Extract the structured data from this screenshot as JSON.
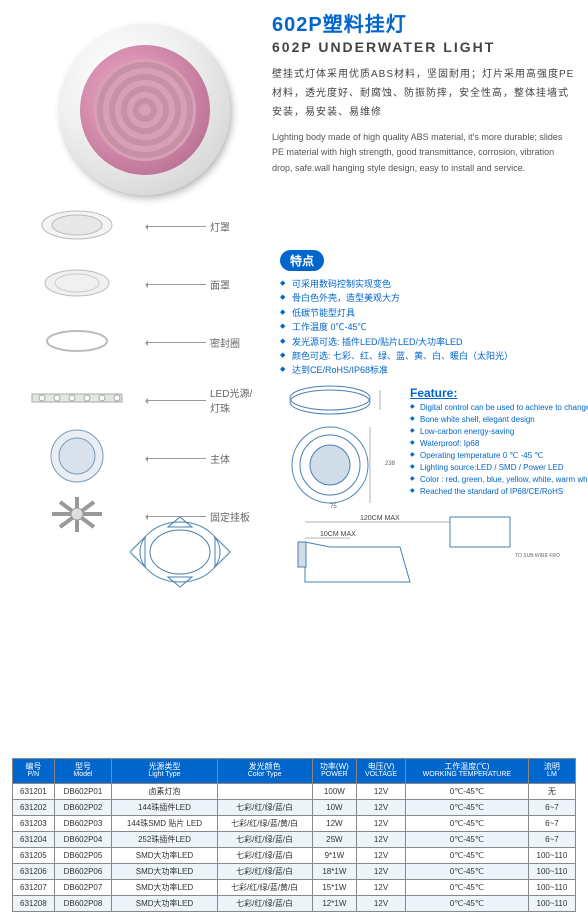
{
  "title_cn": "602P塑料挂灯",
  "title_en": "602P  UNDERWATER LIGHT",
  "desc_cn": "壁挂式灯体采用优质ABS材料，坚固耐用；灯片采用高强度PE材料，透光度好、耐腐蚀、防振防摔，安全性高，整体挂墙式安装，易安装、易维修",
  "desc_en": "Lighting body  made of high quality ABS material, it's more durable;  slides PE material with high strength, good transmittance, corrosion, vibration drop, safe.wall hanging style design, easy to install and service.",
  "parts": [
    {
      "label": "灯罩"
    },
    {
      "label": "面罩"
    },
    {
      "label": "密封圈"
    },
    {
      "label": "LED光源/灯珠"
    },
    {
      "label": "主体"
    },
    {
      "label": "固定挂板"
    }
  ],
  "features_badge": "特点",
  "features_cn": [
    "可采用数码控制实现变色",
    "骨白色外壳，造型美观大方",
    "低碳节能型灯具",
    "工作温度 0℃-45℃",
    "发光源可选: 插件LED/贴片LED/大功率LED",
    "颜色可选: 七彩、红、绿、蓝、黄、白、暖白（太阳光）",
    "达到CE/RoHS/IP68标准"
  ],
  "features_en_title": "Feature:",
  "features_en": [
    "Digital control can be used to achieve to change color",
    "Bone white shell, elegant design",
    "Low-carbon energy-saving",
    "Waterproof: Ip68",
    "Operating temperature 0 ℃ -45 ℃",
    "Lighting source:LED / SMD  / Power LED",
    "Color : red, green, blue, yellow, white, warm white(optional)",
    "Reached the standard of IP68/CE/RoHS"
  ],
  "dim_label1": "120CM MAX",
  "dim_label2": "10CM MAX",
  "table": {
    "headers": [
      {
        "cn": "编号",
        "en": "P/N"
      },
      {
        "cn": "型号",
        "en": "Model"
      },
      {
        "cn": "光源类型",
        "en": "Light Type"
      },
      {
        "cn": "发光颜色",
        "en": "Color Type"
      },
      {
        "cn": "功率(W)",
        "en": "POWER"
      },
      {
        "cn": "电压(V)",
        "en": "VOLTAGE"
      },
      {
        "cn": "工作温度(℃)",
        "en": "WORKING TEMPERATURE"
      },
      {
        "cn": "流明",
        "en": "LM"
      }
    ],
    "rows": [
      [
        "631201",
        "DB602P01",
        "卤素灯泡",
        "",
        "100W",
        "12V",
        "0℃-45℃",
        "无"
      ],
      [
        "631202",
        "DB602P02",
        "144珠插件LED",
        "七彩/红/绿/蓝/白",
        "10W",
        "12V",
        "0℃-45℃",
        "6~7"
      ],
      [
        "631203",
        "DB602P03",
        "144珠SMD 贴片 LED",
        "七彩/红/绿/蓝/黄/白",
        "12W",
        "12V",
        "0℃-45℃",
        "6~7"
      ],
      [
        "631204",
        "DB602P04",
        "252珠插件LED",
        "七彩/红/绿/蓝/白",
        "25W",
        "12V",
        "0℃-45℃",
        "6~7"
      ],
      [
        "631205",
        "DB602P05",
        "SMD大功率LED",
        "七彩/红/绿/蓝/白",
        "9*1W",
        "12V",
        "0℃-45℃",
        "100~110"
      ],
      [
        "631206",
        "DB602P06",
        "SMD大功率LED",
        "七彩/红/绿/蓝/白",
        "18*1W",
        "12V",
        "0℃-45℃",
        "100~110"
      ],
      [
        "631207",
        "DB602P07",
        "SMD大功率LED",
        "七彩/红/绿/蓝/黄/白",
        "15*1W",
        "12V",
        "0℃-45℃",
        "100~110"
      ],
      [
        "631208",
        "DB602P08",
        "SMD大功率LED",
        "七彩/红/绿/蓝/白",
        "12*1W",
        "12V",
        "0℃-45℃",
        "100~110"
      ]
    ]
  },
  "colors": {
    "primary": "#0066cc",
    "border": "#888888",
    "row_alt": "#eef4fb"
  }
}
